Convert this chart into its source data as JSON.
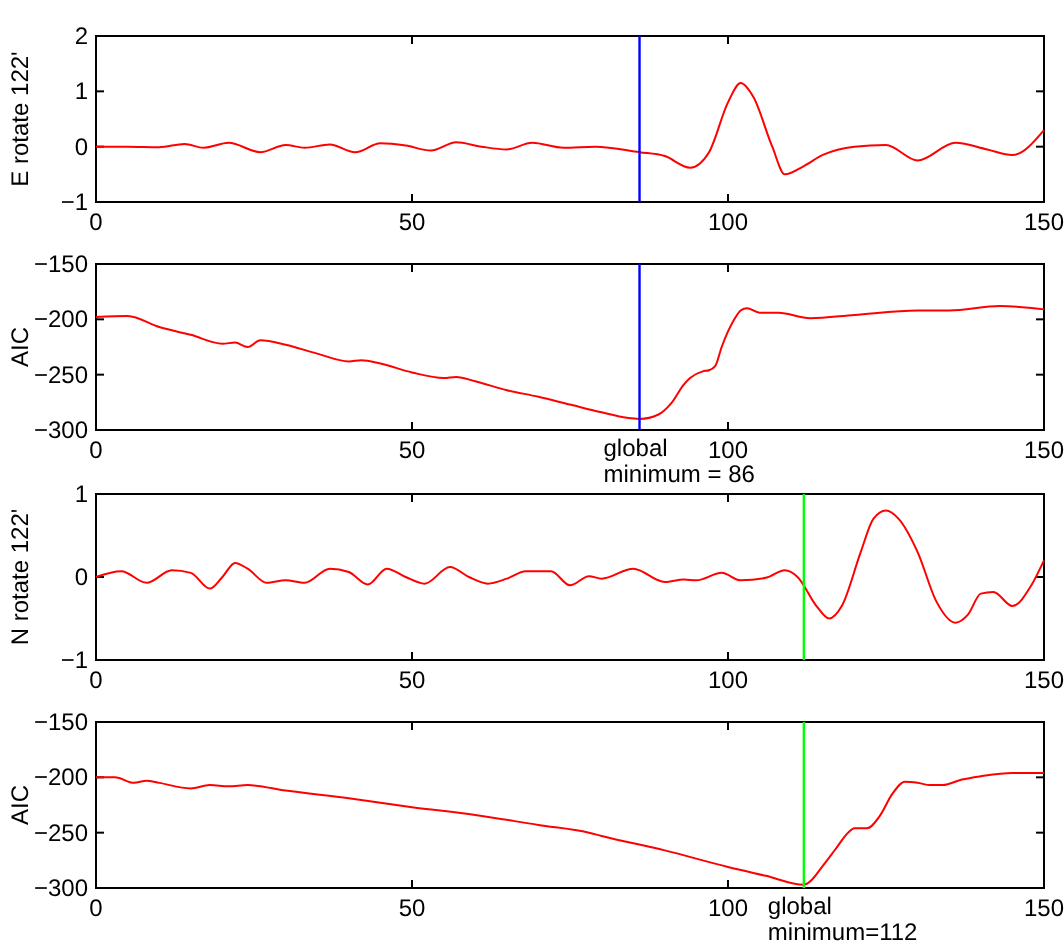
{
  "chart_data": [
    {
      "type": "line",
      "x": [
        0,
        5,
        10,
        14,
        17,
        21,
        26,
        30,
        33,
        37,
        41,
        45,
        49,
        53,
        57,
        61,
        65,
        69,
        74,
        79,
        86,
        90,
        94,
        97,
        100,
        102,
        104,
        107,
        109,
        112,
        115,
        120,
        125,
        130,
        136,
        141,
        145,
        150
      ],
      "values": [
        0,
        0,
        -0.01,
        0.05,
        -0.02,
        0.07,
        -0.1,
        0.03,
        -0.02,
        0.04,
        -0.1,
        0.06,
        0.02,
        -0.07,
        0.08,
        0,
        -0.05,
        0.07,
        -0.02,
        0,
        -0.1,
        -0.17,
        -0.38,
        -0.1,
        0.8,
        1.15,
        0.9,
        0,
        -0.5,
        -0.35,
        -0.15,
        0,
        0.03,
        -0.25,
        0.07,
        -0.05,
        -0.15,
        0.3
      ],
      "color": "#ff0000",
      "ylabel": "E rotate 122'",
      "xlim": [
        0,
        150
      ],
      "xticks": [
        0,
        50,
        100,
        150
      ],
      "ylim": [
        -1,
        2
      ],
      "yticks": [
        -1,
        0,
        1,
        2
      ],
      "ref_lines": [
        {
          "axis": "x",
          "value": 86,
          "color": "#0000ff"
        }
      ]
    },
    {
      "type": "line",
      "x": [
        0,
        5,
        10,
        15,
        20,
        22,
        24,
        26,
        30,
        35,
        40,
        42,
        45,
        50,
        55,
        57,
        60,
        65,
        70,
        75,
        80,
        84,
        86,
        89,
        91,
        93,
        94,
        96,
        97,
        98,
        99,
        101,
        102,
        103,
        105,
        108,
        113,
        120,
        130,
        135,
        143,
        150
      ],
      "values": [
        -198,
        -197,
        -207,
        -214,
        -222,
        -221,
        -225,
        -219,
        -223,
        -231,
        -238,
        -237,
        -240,
        -248,
        -253,
        -252,
        -256,
        -264,
        -270,
        -277,
        -284,
        -289,
        -290,
        -286,
        -276,
        -259,
        -253,
        -247,
        -246,
        -242,
        -225,
        -200,
        -192,
        -190,
        -194,
        -194,
        -199,
        -196,
        -192,
        -192,
        -188,
        -191
      ],
      "color": "#ff0000",
      "ylabel": "AIC",
      "xlim": [
        0,
        150
      ],
      "xticks": [
        0,
        50,
        100,
        150
      ],
      "ylim": [
        -300,
        -150
      ],
      "yticks": [
        -300,
        -250,
        -200,
        -150
      ],
      "ref_lines": [
        {
          "axis": "x",
          "value": 86,
          "color": "#0000ff",
          "label": "global\nminimum = 86"
        }
      ]
    },
    {
      "type": "line",
      "x": [
        0,
        4,
        8,
        12,
        15,
        18,
        20,
        22,
        24,
        27,
        30,
        33,
        37,
        40,
        43,
        46,
        49,
        52,
        56,
        59,
        62,
        65,
        68,
        72,
        75,
        78,
        80,
        85,
        90,
        93,
        95,
        99,
        102,
        106,
        109,
        111,
        114,
        116,
        118,
        121,
        123,
        125,
        127,
        130,
        133,
        136,
        138,
        140,
        142,
        145,
        148,
        150
      ],
      "values": [
        0,
        0.07,
        -0.07,
        0.08,
        0.05,
        -0.14,
        0,
        0.17,
        0.1,
        -0.07,
        -0.04,
        -0.07,
        0.1,
        0.06,
        -0.09,
        0.1,
        0,
        -0.08,
        0.12,
        0,
        -0.08,
        -0.02,
        0.07,
        0.07,
        -0.1,
        0.01,
        -0.02,
        0.1,
        -0.06,
        -0.03,
        -0.04,
        0.05,
        -0.04,
        -0.01,
        0.08,
        0,
        -0.35,
        -0.5,
        -0.35,
        0.3,
        0.7,
        0.8,
        0.7,
        0.3,
        -0.3,
        -0.55,
        -0.45,
        -0.2,
        -0.18,
        -0.35,
        -0.1,
        0.2
      ],
      "color": "#ff0000",
      "ylabel": "N rotate 122'",
      "xlim": [
        0,
        150
      ],
      "xticks": [
        0,
        50,
        100,
        150
      ],
      "ylim": [
        -1,
        1
      ],
      "yticks": [
        -1,
        0,
        1
      ],
      "ref_lines": [
        {
          "axis": "x",
          "value": 112,
          "color": "#00ff00"
        }
      ]
    },
    {
      "type": "line",
      "x": [
        0,
        3,
        6,
        8,
        10,
        15,
        18,
        21,
        24,
        30,
        40,
        50,
        60,
        70,
        78,
        80,
        90,
        100,
        106,
        112,
        113,
        115,
        117,
        119,
        120,
        122,
        124,
        126,
        128,
        130,
        132,
        134,
        137,
        140,
        145,
        150
      ],
      "values": [
        -200,
        -200,
        -205,
        -203,
        -205,
        -210,
        -207,
        -208,
        -207,
        -212,
        -219,
        -227,
        -234,
        -243,
        -250,
        -253,
        -266,
        -281,
        -289,
        -297,
        -294,
        -280,
        -265,
        -250,
        -246,
        -246,
        -235,
        -215,
        -204,
        -205,
        -207,
        -207,
        -202,
        -199,
        -196,
        -196
      ],
      "color": "#ff0000",
      "ylabel": "AIC",
      "xlim": [
        0,
        150
      ],
      "xticks": [
        0,
        50,
        100,
        150
      ],
      "ylim": [
        -300,
        -150
      ],
      "yticks": [
        -300,
        -250,
        -200,
        -150
      ],
      "ref_lines": [
        {
          "axis": "x",
          "value": 112,
          "color": "#00ff00",
          "label": "global\nminimum=112"
        }
      ]
    }
  ]
}
